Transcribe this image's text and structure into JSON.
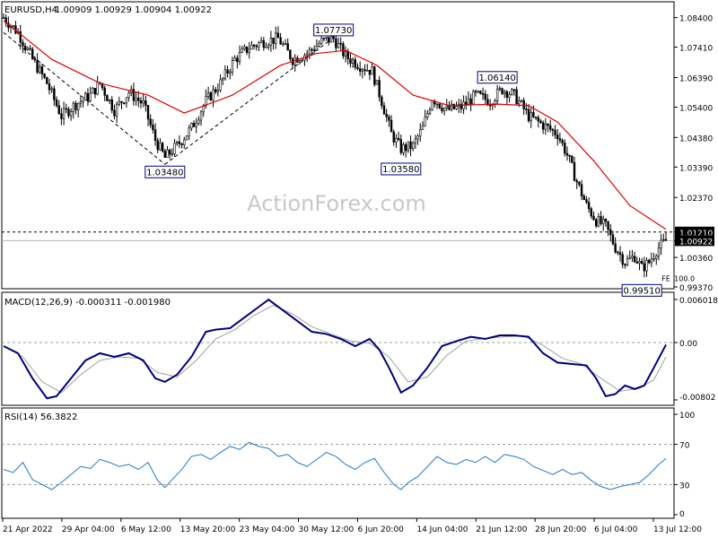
{
  "header": {
    "symbol_timeframe": "EURUSD,H4",
    "ohlc": "1.00909 1.00929 1.00904 1.00922"
  },
  "watermark": "ActionForex.com",
  "colors": {
    "candle": "#000000",
    "sma": "#e00000",
    "macd": "#000080",
    "signal": "#a0a0a0",
    "rsi": "#1e78d2",
    "label_border": "#000080",
    "grid_dash": "#000000",
    "tag_bg": "#000000"
  },
  "chart_data": [
    {
      "type": "candlestick",
      "title": "EURUSD,H4",
      "y_ticks": [
        "1.08400",
        "1.07410",
        "1.06390",
        "1.05400",
        "1.04380",
        "1.03390",
        "1.02370",
        "1.01210",
        "1.00922",
        "1.00360",
        "0.99370"
      ],
      "ylim": [
        0.9937,
        1.0887
      ],
      "x_ticks": [
        "21 Apr 2022",
        "29 Apr 04:00",
        "6 May 12:00",
        "13 May 20:00",
        "23 May 04:00",
        "30 May 12:00",
        "6 Jun 20:00",
        "14 Jun 04:00",
        "21 Jun 12:00",
        "28 Jun 20:00",
        "6 Jul 04:00",
        "13 Jul 12:00"
      ],
      "close_path": [
        [
          0,
          1.084
        ],
        [
          6,
          1.079
        ],
        [
          12,
          1.07
        ],
        [
          18,
          1.062
        ],
        [
          24,
          1.051
        ],
        [
          30,
          1.055
        ],
        [
          36,
          1.058
        ],
        [
          40,
          1.062
        ],
        [
          46,
          1.053
        ],
        [
          52,
          1.059
        ],
        [
          58,
          1.055
        ],
        [
          63,
          1.043
        ],
        [
          67,
          1.037
        ],
        [
          72,
          1.041
        ],
        [
          78,
          1.047
        ],
        [
          84,
          1.056
        ],
        [
          90,
          1.062
        ],
        [
          96,
          1.07
        ],
        [
          102,
          1.074
        ],
        [
          108,
          1.076
        ],
        [
          114,
          1.077
        ],
        [
          120,
          1.07
        ],
        [
          126,
          1.072
        ],
        [
          132,
          1.076
        ],
        [
          137,
          1.077
        ],
        [
          142,
          1.071
        ],
        [
          148,
          1.068
        ],
        [
          153,
          1.066
        ],
        [
          157,
          1.056
        ],
        [
          161,
          1.045
        ],
        [
          165,
          1.04
        ],
        [
          170,
          1.041
        ],
        [
          174,
          1.047
        ],
        [
          178,
          1.057
        ],
        [
          184,
          1.053
        ],
        [
          190,
          1.054
        ],
        [
          196,
          1.058
        ],
        [
          202,
          1.056
        ],
        [
          207,
          1.06
        ],
        [
          212,
          1.058
        ],
        [
          218,
          1.051
        ],
        [
          224,
          1.048
        ],
        [
          230,
          1.045
        ],
        [
          234,
          1.038
        ],
        [
          238,
          1.029
        ],
        [
          242,
          1.021
        ],
        [
          246,
          1.016
        ],
        [
          250,
          1.014
        ],
        [
          254,
          1.007
        ],
        [
          258,
          1.002
        ],
        [
          262,
          1.004
        ],
        [
          265,
          1.0
        ],
        [
          268,
          1.002
        ],
        [
          271,
          1.006
        ],
        [
          275,
          1.0092
        ]
      ],
      "bars_total": 276,
      "sma_path": [
        [
          0,
          1.083
        ],
        [
          20,
          1.07
        ],
        [
          40,
          1.062
        ],
        [
          60,
          1.058
        ],
        [
          75,
          1.052
        ],
        [
          95,
          1.058
        ],
        [
          115,
          1.068
        ],
        [
          130,
          1.072
        ],
        [
          142,
          1.073
        ],
        [
          155,
          1.068
        ],
        [
          170,
          1.058
        ],
        [
          185,
          1.0545
        ],
        [
          205,
          1.055
        ],
        [
          218,
          1.0545
        ],
        [
          230,
          1.049
        ],
        [
          245,
          1.036
        ],
        [
          260,
          1.021
        ],
        [
          275,
          1.013
        ]
      ],
      "series": [
        {
          "name": "SMA",
          "values_ref": "sma_path"
        }
      ],
      "annotations": [
        {
          "label": "1.07730",
          "bar": 137,
          "price": 1.0773
        },
        {
          "label": "1.06140",
          "bar": 205,
          "price": 1.0614
        },
        {
          "label": "1.03480",
          "bar": 67,
          "price": 1.0348
        },
        {
          "label": "1.03580",
          "bar": 165,
          "price": 1.0358
        },
        {
          "label": "0.99510",
          "bar": 265,
          "price": 0.9951
        }
      ],
      "trend_lines": [
        {
          "from": [
            0,
            1.079
          ],
          "to": [
            67,
            1.0348
          ]
        },
        {
          "from": [
            67,
            1.0348
          ],
          "to": [
            137,
            1.0773
          ]
        }
      ],
      "horizontal_lines": [
        {
          "price": 1.0121,
          "style": "dashed"
        },
        {
          "price": 1.00922,
          "style": "solid"
        }
      ],
      "price_tags": [
        "1.01210",
        "1.00922"
      ],
      "fib_label": "100.0",
      "fib_marker": "FE"
    },
    {
      "type": "line",
      "title": "MACD(12,26,9) -0.000311 -0.001980",
      "y_ticks": [
        "0.006018",
        "0.00",
        "-0.00802"
      ],
      "ylim": [
        -0.00802,
        0.006018
      ],
      "macd_path": [
        [
          0,
          -0.0005
        ],
        [
          6,
          -0.0015
        ],
        [
          12,
          -0.005
        ],
        [
          18,
          -0.0078
        ],
        [
          22,
          -0.0075
        ],
        [
          28,
          -0.005
        ],
        [
          34,
          -0.0025
        ],
        [
          40,
          -0.0015
        ],
        [
          46,
          -0.002
        ],
        [
          52,
          -0.0015
        ],
        [
          58,
          -0.0025
        ],
        [
          63,
          -0.005
        ],
        [
          67,
          -0.0055
        ],
        [
          72,
          -0.0045
        ],
        [
          78,
          -0.002
        ],
        [
          84,
          0.0015
        ],
        [
          88,
          0.0018
        ],
        [
          94,
          0.002
        ],
        [
          100,
          0.0035
        ],
        [
          106,
          0.005
        ],
        [
          110,
          0.006
        ],
        [
          116,
          0.0045
        ],
        [
          122,
          0.003
        ],
        [
          128,
          0.0015
        ],
        [
          134,
          0.0012
        ],
        [
          140,
          0.0005
        ],
        [
          146,
          -0.0005
        ],
        [
          152,
          0.0005
        ],
        [
          156,
          -0.001
        ],
        [
          160,
          -0.0035
        ],
        [
          165,
          -0.007
        ],
        [
          170,
          -0.006
        ],
        [
          176,
          -0.0035
        ],
        [
          182,
          -0.0005
        ],
        [
          188,
          0.0002
        ],
        [
          194,
          0.0008
        ],
        [
          200,
          0.0005
        ],
        [
          206,
          0.001
        ],
        [
          212,
          0.001
        ],
        [
          218,
          0.0008
        ],
        [
          224,
          -0.0015
        ],
        [
          230,
          -0.0028
        ],
        [
          236,
          -0.003
        ],
        [
          242,
          -0.0032
        ],
        [
          246,
          -0.005
        ],
        [
          250,
          -0.0075
        ],
        [
          254,
          -0.0072
        ],
        [
          258,
          -0.006
        ],
        [
          262,
          -0.0065
        ],
        [
          266,
          -0.006
        ],
        [
          270,
          -0.0035
        ],
        [
          275,
          -0.0003
        ]
      ],
      "signal_path": [
        [
          0,
          -0.0005
        ],
        [
          8,
          -0.002
        ],
        [
          16,
          -0.0055
        ],
        [
          24,
          -0.007
        ],
        [
          32,
          -0.0045
        ],
        [
          40,
          -0.0025
        ],
        [
          48,
          -0.002
        ],
        [
          56,
          -0.0022
        ],
        [
          64,
          -0.0042
        ],
        [
          72,
          -0.0048
        ],
        [
          80,
          -0.0025
        ],
        [
          88,
          0.0005
        ],
        [
          96,
          0.0018
        ],
        [
          104,
          0.0038
        ],
        [
          112,
          0.0052
        ],
        [
          120,
          0.004
        ],
        [
          128,
          0.0022
        ],
        [
          136,
          0.0012
        ],
        [
          144,
          0.0002
        ],
        [
          152,
          -0.0001
        ],
        [
          160,
          -0.002
        ],
        [
          168,
          -0.0055
        ],
        [
          176,
          -0.0048
        ],
        [
          184,
          -0.0018
        ],
        [
          192,
          0.0002
        ],
        [
          200,
          0.0006
        ],
        [
          208,
          0.0008
        ],
        [
          216,
          0.0009
        ],
        [
          224,
          -0.0004
        ],
        [
          232,
          -0.0022
        ],
        [
          240,
          -0.003
        ],
        [
          248,
          -0.005
        ],
        [
          256,
          -0.0068
        ],
        [
          264,
          -0.0064
        ],
        [
          270,
          -0.0052
        ],
        [
          275,
          -0.002
        ]
      ],
      "series": [
        {
          "name": "MACD",
          "values_ref": "macd_path"
        },
        {
          "name": "Signal",
          "values_ref": "signal_path"
        }
      ]
    },
    {
      "type": "line",
      "title": "RSI(14) 56.3822",
      "y_ticks": [
        "100",
        "70",
        "30",
        "0"
      ],
      "ylim": [
        0,
        100
      ],
      "levels": [
        70,
        30
      ],
      "rsi_path": [
        [
          0,
          45
        ],
        [
          4,
          42
        ],
        [
          8,
          52
        ],
        [
          12,
          35
        ],
        [
          16,
          30
        ],
        [
          20,
          25
        ],
        [
          24,
          32
        ],
        [
          28,
          40
        ],
        [
          32,
          48
        ],
        [
          36,
          46
        ],
        [
          40,
          55
        ],
        [
          44,
          52
        ],
        [
          48,
          48
        ],
        [
          52,
          50
        ],
        [
          56,
          45
        ],
        [
          60,
          52
        ],
        [
          64,
          34
        ],
        [
          67,
          27
        ],
        [
          70,
          35
        ],
        [
          74,
          45
        ],
        [
          78,
          58
        ],
        [
          82,
          60
        ],
        [
          86,
          55
        ],
        [
          90,
          62
        ],
        [
          94,
          68
        ],
        [
          98,
          65
        ],
        [
          102,
          72
        ],
        [
          106,
          68
        ],
        [
          110,
          66
        ],
        [
          114,
          58
        ],
        [
          118,
          60
        ],
        [
          122,
          52
        ],
        [
          126,
          48
        ],
        [
          130,
          55
        ],
        [
          134,
          62
        ],
        [
          138,
          58
        ],
        [
          142,
          50
        ],
        [
          146,
          45
        ],
        [
          150,
          52
        ],
        [
          154,
          56
        ],
        [
          158,
          42
        ],
        [
          162,
          30
        ],
        [
          165,
          25
        ],
        [
          168,
          32
        ],
        [
          172,
          38
        ],
        [
          176,
          48
        ],
        [
          180,
          58
        ],
        [
          184,
          52
        ],
        [
          188,
          50
        ],
        [
          192,
          55
        ],
        [
          196,
          52
        ],
        [
          200,
          58
        ],
        [
          204,
          52
        ],
        [
          208,
          60
        ],
        [
          212,
          58
        ],
        [
          216,
          55
        ],
        [
          220,
          48
        ],
        [
          224,
          44
        ],
        [
          228,
          40
        ],
        [
          232,
          45
        ],
        [
          236,
          40
        ],
        [
          240,
          42
        ],
        [
          244,
          34
        ],
        [
          248,
          28
        ],
        [
          252,
          25
        ],
        [
          256,
          28
        ],
        [
          260,
          30
        ],
        [
          264,
          32
        ],
        [
          268,
          40
        ],
        [
          272,
          50
        ],
        [
          275,
          56
        ]
      ],
      "series": [
        {
          "name": "RSI",
          "values_ref": "rsi_path"
        }
      ]
    }
  ]
}
